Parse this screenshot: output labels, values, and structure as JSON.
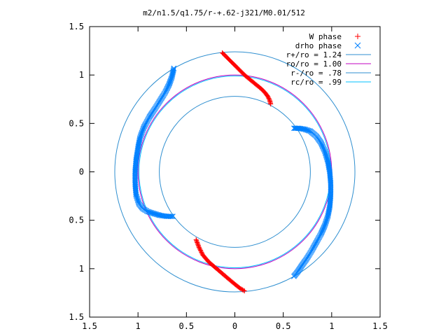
{
  "chart_data": {
    "type": "scatter",
    "title": "m2/n1.5/q1.75/r-+.62-j321/M0.01/512",
    "xlim": [
      -1.5,
      1.5
    ],
    "ylim": [
      -1.5,
      1.5
    ],
    "x_ticks": [
      -1.5,
      -1,
      -0.5,
      0,
      0.5,
      1,
      1.5
    ],
    "y_ticks": [
      -1.5,
      -1,
      -0.5,
      0,
      0.5,
      1,
      1.5
    ],
    "x_tick_labels": [
      "1.5",
      "1",
      "0.5",
      "0",
      "0.5",
      "1",
      "1.5"
    ],
    "y_tick_labels": [
      "1.5",
      "1",
      "0.5",
      "0",
      "0.5",
      "1",
      "1.5"
    ],
    "grid": false,
    "legend_position": "top-right",
    "series": [
      {
        "name": "W phase",
        "marker": "plus",
        "color": "#ff0000",
        "arms": [
          {
            "x": [
              -0.13,
              -0.08,
              -0.02,
              0.04,
              0.1,
              0.16,
              0.22,
              0.27,
              0.31,
              0.34,
              0.36,
              0.37
            ],
            "y": [
              1.23,
              1.18,
              1.12,
              1.06,
              1.0,
              0.95,
              0.9,
              0.86,
              0.82,
              0.78,
              0.74,
              0.7
            ]
          },
          {
            "x": [
              -0.4,
              -0.37,
              -0.33,
              -0.27,
              -0.2,
              -0.13,
              -0.06,
              0.0,
              0.05,
              0.1
            ],
            "y": [
              -0.7,
              -0.78,
              -0.86,
              -0.93,
              -0.99,
              -1.05,
              -1.11,
              -1.16,
              -1.2,
              -1.23
            ]
          }
        ]
      },
      {
        "name": "drho phase",
        "marker": "cross",
        "color": "#0080ff",
        "arms": [
          {
            "x": [
              -0.63,
              -0.65,
              -0.68,
              -0.72,
              -0.77,
              -0.82,
              -0.88,
              -0.94,
              -0.98,
              -1.0,
              -1.02,
              -1.03,
              -1.03,
              -1.02,
              -0.99,
              -0.95,
              -0.9,
              -0.84,
              -0.77,
              -0.7,
              -0.64
            ],
            "y": [
              1.07,
              0.98,
              0.9,
              0.82,
              0.74,
              0.66,
              0.57,
              0.46,
              0.35,
              0.25,
              0.12,
              0.0,
              -0.12,
              -0.24,
              -0.33,
              -0.38,
              -0.41,
              -0.43,
              -0.45,
              -0.46,
              -0.46
            ]
          },
          {
            "x": [
              0.61,
              0.66,
              0.72,
              0.78,
              0.84,
              0.89,
              0.93,
              0.96,
              0.98,
              0.99,
              0.99,
              0.98,
              0.96,
              0.93,
              0.89,
              0.84,
              0.79,
              0.74,
              0.69,
              0.65,
              0.61
            ],
            "y": [
              0.45,
              0.45,
              0.44,
              0.42,
              0.37,
              0.3,
              0.21,
              0.11,
              0.0,
              -0.12,
              -0.24,
              -0.36,
              -0.46,
              -0.55,
              -0.64,
              -0.73,
              -0.82,
              -0.9,
              -0.97,
              -1.03,
              -1.08
            ]
          }
        ]
      },
      {
        "name": "r+/ro = 1.24",
        "type": "circle",
        "radius": 1.24,
        "color": "#2f8fd0"
      },
      {
        "name": "ro/ro = 1.00",
        "type": "circle",
        "radius": 1.0,
        "color": "#c000c0"
      },
      {
        "name": "r-/ro = .78",
        "type": "circle",
        "radius": 0.78,
        "color": "#2f8fd0"
      },
      {
        "name": "rc/ro = .99",
        "type": "circle",
        "radius": 0.99,
        "color": "#00c0ff"
      }
    ]
  }
}
